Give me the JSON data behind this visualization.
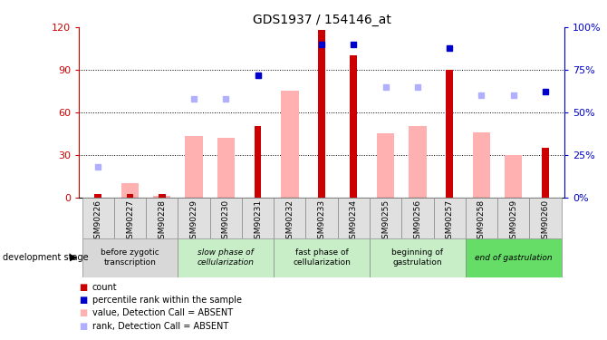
{
  "title": "GDS1937 / 154146_at",
  "samples": [
    "GSM90226",
    "GSM90227",
    "GSM90228",
    "GSM90229",
    "GSM90230",
    "GSM90231",
    "GSM90232",
    "GSM90233",
    "GSM90234",
    "GSM90255",
    "GSM90256",
    "GSM90257",
    "GSM90258",
    "GSM90259",
    "GSM90260"
  ],
  "count_values": [
    2,
    2,
    2,
    0,
    0,
    50,
    0,
    118,
    100,
    0,
    0,
    90,
    0,
    0,
    35
  ],
  "value_absent": [
    null,
    10,
    1,
    43,
    42,
    null,
    75,
    null,
    null,
    45,
    50,
    null,
    46,
    30,
    null
  ],
  "rank_absent": [
    18,
    null,
    null,
    58,
    58,
    72,
    null,
    null,
    null,
    65,
    65,
    null,
    60,
    60,
    null
  ],
  "percentile_rank": [
    null,
    null,
    null,
    null,
    null,
    72,
    null,
    90,
    90,
    null,
    null,
    88,
    null,
    null,
    62
  ],
  "left_ylim": [
    0,
    120
  ],
  "right_ylim": [
    0,
    100
  ],
  "left_yticks": [
    0,
    30,
    60,
    90,
    120
  ],
  "right_yticks": [
    0,
    25,
    50,
    75,
    100
  ],
  "right_yticklabels": [
    "0%",
    "25%",
    "50%",
    "75%",
    "100%"
  ],
  "left_color": "#cc0000",
  "right_color": "#0000cc",
  "absent_bar_color": "#ffb0b0",
  "absent_rank_color": "#b0b0ff",
  "stages": [
    {
      "label": "before zygotic\ntranscription",
      "samples": [
        "GSM90226",
        "GSM90227",
        "GSM90228"
      ],
      "color": "#d8d8d8",
      "italic": false
    },
    {
      "label": "slow phase of\ncellularization",
      "samples": [
        "GSM90229",
        "GSM90230",
        "GSM90231"
      ],
      "color": "#c8eec8",
      "italic": true
    },
    {
      "label": "fast phase of\ncellularization",
      "samples": [
        "GSM90232",
        "GSM90233",
        "GSM90234"
      ],
      "color": "#c8eec8",
      "italic": false
    },
    {
      "label": "beginning of\ngastrulation",
      "samples": [
        "GSM90255",
        "GSM90256",
        "GSM90257"
      ],
      "color": "#c8eec8",
      "italic": false
    },
    {
      "label": "end of gastrulation",
      "samples": [
        "GSM90258",
        "GSM90259",
        "GSM90260"
      ],
      "color": "#66dd66",
      "italic": true
    }
  ],
  "legend_items": [
    {
      "label": "count",
      "color": "#cc0000"
    },
    {
      "label": "percentile rank within the sample",
      "color": "#0000cc"
    },
    {
      "label": "value, Detection Call = ABSENT",
      "color": "#ffb0b0"
    },
    {
      "label": "rank, Detection Call = ABSENT",
      "color": "#b0b0ff"
    }
  ]
}
